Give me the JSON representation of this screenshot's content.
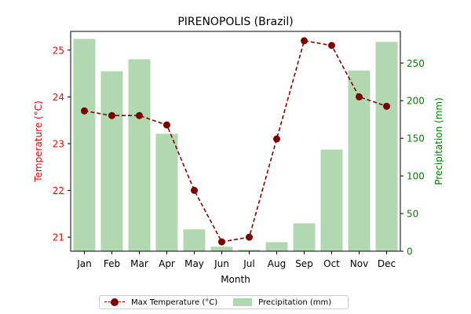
{
  "chart_data": {
    "type": "bar+line",
    "title": "PIRENOPOLIS (Brazil)",
    "xlabel": "Month",
    "ylabel_left": "Temperature (°C)",
    "ylabel_right": "Precipitation (mm)",
    "categories": [
      "Jan",
      "Feb",
      "Mar",
      "Apr",
      "May",
      "Jun",
      "Jul",
      "Aug",
      "Sep",
      "Oct",
      "Nov",
      "Dec"
    ],
    "temperature": {
      "name": "Max Temperature (°C)",
      "values": [
        23.7,
        23.6,
        23.6,
        23.4,
        22.0,
        20.9,
        21.0,
        23.1,
        25.2,
        25.1,
        24.0,
        23.8
      ],
      "ylim": [
        20.7,
        25.4
      ],
      "ticks": [
        21,
        22,
        23,
        24,
        25
      ],
      "color": "#8b0000"
    },
    "precipitation": {
      "name": "Precipitation (mm)",
      "values": [
        282,
        239,
        255,
        156,
        29,
        6,
        2,
        12,
        37,
        135,
        240,
        278
      ],
      "ylim": [
        0,
        292
      ],
      "ticks": [
        0,
        50,
        100,
        150,
        200,
        250
      ],
      "color": "#b2d8b2"
    },
    "axis_colors": {
      "left": "#ff0000",
      "right": "#008000"
    },
    "legend_position": "bottom-center"
  }
}
